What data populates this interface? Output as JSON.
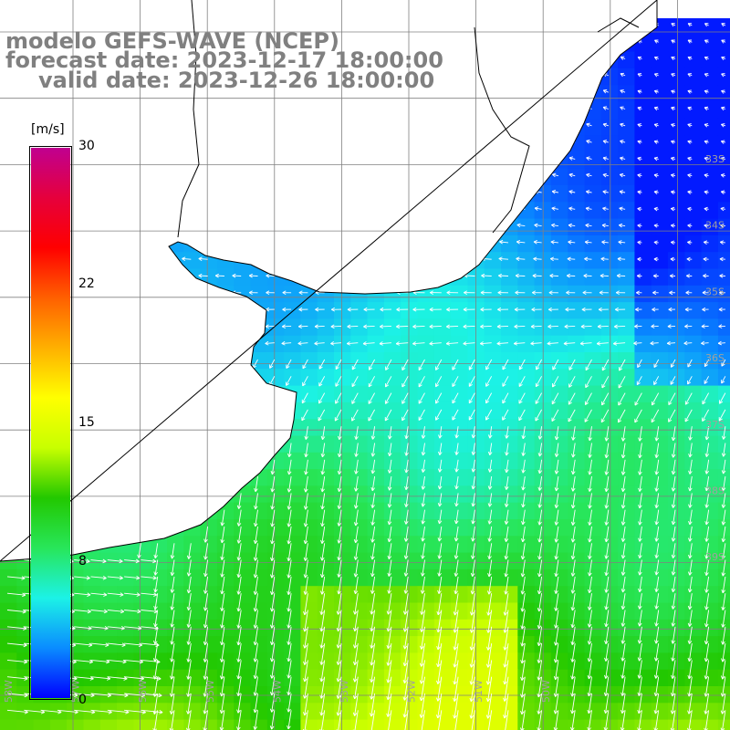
{
  "title": {
    "line1": "modelo GEFS-WAVE (NCEP)",
    "line2": "forecast date: 2023-12-17 18:00:00",
    "line3": "valid date: 2023-12-26 18:00:00"
  },
  "colorbar": {
    "unit": "[m/s]",
    "ticks": [
      "30",
      "22",
      "15",
      "8",
      "0"
    ],
    "tick_values": [
      30,
      22,
      15,
      8,
      0
    ],
    "min": 0,
    "max": 30,
    "colors": [
      "#0000ff",
      "#0a8cff",
      "#1cf2e6",
      "#28e65a",
      "#22c800",
      "#c8ff00",
      "#ffff00",
      "#ffb000",
      "#ff6000",
      "#ff0000",
      "#e6003c",
      "#c00090"
    ]
  },
  "grid": {
    "lat_labels": [
      "33S",
      "34S",
      "35S",
      "36S",
      "37S",
      "38S",
      "39S"
    ],
    "lon_labels": [
      "58W",
      "57W",
      "56W",
      "55W",
      "54W",
      "53W",
      "52W",
      "51W",
      "50W"
    ]
  },
  "map": {
    "land_color": "#ffffff",
    "coastline_color": "#000000",
    "grid_color": "#808080",
    "arrow_color": "#ffffff",
    "field_description": "wind speed (m/s) with direction arrows"
  }
}
